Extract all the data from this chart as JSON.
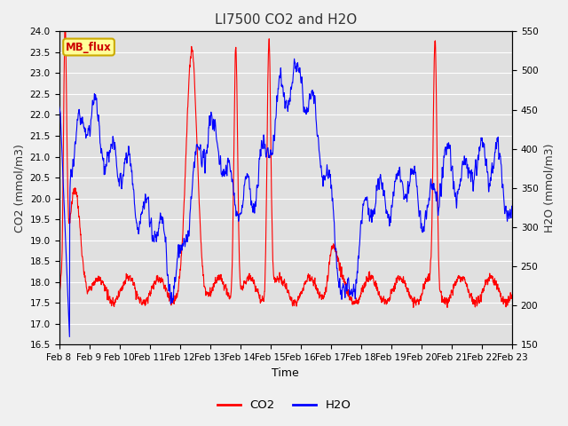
{
  "title": "LI7500 CO2 and H2O",
  "xlabel": "Time",
  "ylabel_left": "CO2 (mmol/m3)",
  "ylabel_right": "H2O (mmol/m3)",
  "co2_ylim": [
    16.5,
    24.0
  ],
  "h2o_ylim": [
    150,
    550
  ],
  "co2_color": "#FF0000",
  "h2o_color": "#0000FF",
  "fig_facecolor": "#F0F0F0",
  "plot_facecolor": "#E0E0E0",
  "grid_color": "#FFFFFF",
  "annotation_text": "MB_flux",
  "annotation_bg": "#FFFF99",
  "annotation_edge": "#CCAA00",
  "x_tick_labels": [
    "Feb 8",
    "Feb 9",
    "Feb 10",
    "Feb 11",
    "Feb 12",
    "Feb 13",
    "Feb 14",
    "Feb 15",
    "Feb 16",
    "Feb 17",
    "Feb 18",
    "Feb 19",
    "Feb 20",
    "Feb 21",
    "Feb 22",
    "Feb 23"
  ],
  "title_color": "#333333",
  "legend_co2": "CO2",
  "legend_h2o": "H2O",
  "line_width": 0.8,
  "tick_fontsize": 7.5,
  "label_fontsize": 9,
  "title_fontsize": 11
}
